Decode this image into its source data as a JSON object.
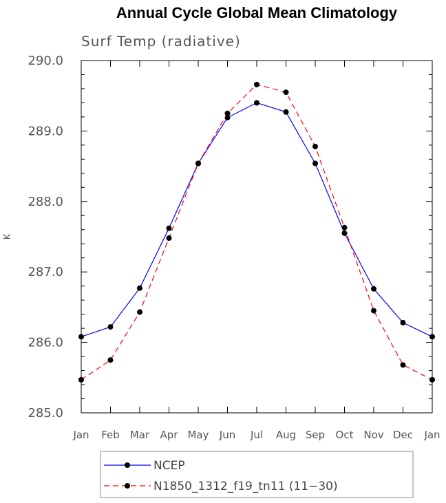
{
  "chart_data": {
    "type": "line",
    "title": "Annual Cycle Global Mean Climatology",
    "subtitle": "Surf Temp (radiative)",
    "xlabel": "",
    "ylabel": "K",
    "ylim": [
      285.0,
      290.0
    ],
    "yticks": [
      "285.0",
      "286.0",
      "287.0",
      "288.0",
      "289.0",
      "290.0"
    ],
    "categories": [
      "Jan",
      "Feb",
      "Mar",
      "Apr",
      "May",
      "Jun",
      "Jul",
      "Aug",
      "Sep",
      "Oct",
      "Nov",
      "Dec",
      "Jan"
    ],
    "series": [
      {
        "name": "NCEP",
        "color": "#0000ff",
        "dash": "solid",
        "values": [
          286.08,
          286.22,
          286.77,
          287.62,
          288.54,
          289.19,
          289.4,
          289.27,
          288.54,
          287.55,
          286.76,
          286.28,
          286.08
        ]
      },
      {
        "name": "N1850_1312_f19_tn11 (11−30)",
        "color": "#ff0000",
        "dash": "dashed",
        "values": [
          285.47,
          285.75,
          286.43,
          287.48,
          288.54,
          289.25,
          289.66,
          289.55,
          288.78,
          287.63,
          286.45,
          285.68,
          285.47
        ]
      }
    ],
    "legend_position": "bottom"
  }
}
